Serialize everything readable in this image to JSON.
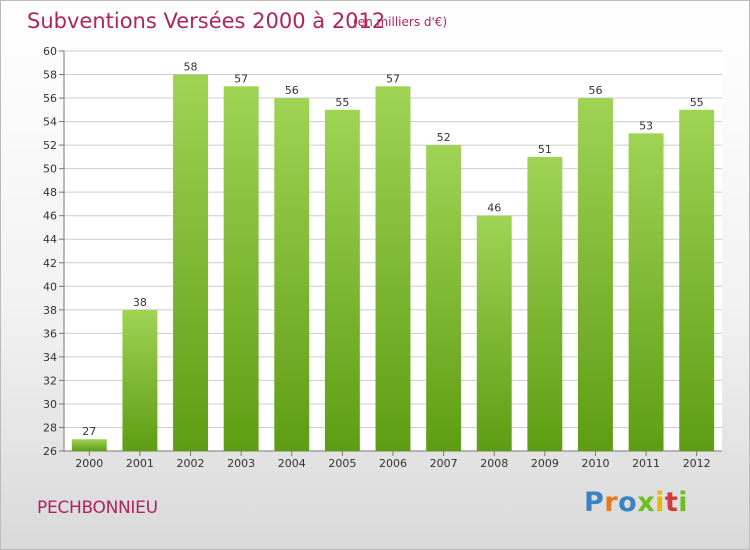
{
  "header": {
    "title": "Subventions Versées 2000 à 2012",
    "subtitle": "(en milliers d'€)"
  },
  "footer": {
    "place": "PECHBONNIEU",
    "logo_letters": [
      "P",
      "r",
      "o",
      "x",
      "i",
      "t",
      "i"
    ]
  },
  "colors": {
    "title": "#b0245e",
    "bar_light": "#9fd354",
    "bar_dark": "#5e9d13",
    "grid": "#cccccc",
    "logo": [
      "#3b82c4",
      "#e87a1d",
      "#3b82c4",
      "#6bbf1f",
      "#e6b800",
      "#d23a3a",
      "#6bbf1f"
    ]
  },
  "chart_data": {
    "type": "bar",
    "title": "Subventions Versées 2000 à 2012",
    "subtitle": "(en milliers d'€)",
    "categories": [
      "2000",
      "2001",
      "2002",
      "2003",
      "2004",
      "2005",
      "2006",
      "2007",
      "2008",
      "2009",
      "2010",
      "2011",
      "2012"
    ],
    "values": [
      27,
      38,
      58,
      57,
      56,
      55,
      57,
      52,
      46,
      51,
      56,
      53,
      55
    ],
    "ylim": [
      26,
      60
    ],
    "yticks": [
      26,
      28,
      30,
      32,
      34,
      36,
      38,
      40,
      42,
      44,
      46,
      48,
      50,
      52,
      54,
      56,
      58,
      60
    ],
    "grid": true,
    "xlabel": "",
    "ylabel": ""
  }
}
